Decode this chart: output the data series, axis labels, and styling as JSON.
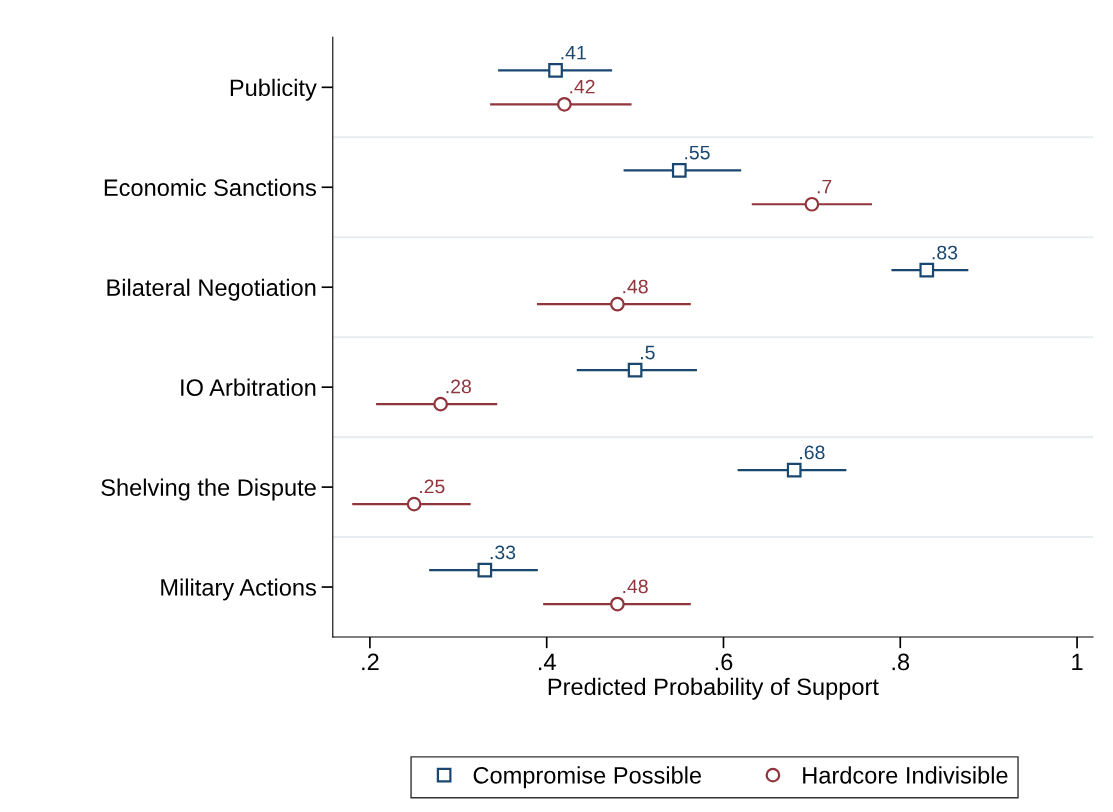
{
  "chart_data": {
    "type": "scatter",
    "orientation": "horizontal",
    "categories": [
      "Publicity",
      "Economic Sanctions",
      "Bilateral Negotiation",
      "IO Arbitration",
      "Shelving the Dispute",
      "Military Actions"
    ],
    "xlabel": "Predicted Probability of Support",
    "xlim": [
      0.158,
      1.018
    ],
    "xticks": [
      {
        "value": 0.2,
        "label": ".2"
      },
      {
        "value": 0.4,
        "label": ".4"
      },
      {
        "value": 0.6,
        "label": ".6"
      },
      {
        "value": 0.8,
        "label": ".8"
      },
      {
        "value": 1,
        "label": "1"
      }
    ],
    "series": [
      {
        "name": "Compromise Possible",
        "color": "#1a476f",
        "marker": "square",
        "values": [
          0.41,
          0.55,
          0.83,
          0.5,
          0.68,
          0.33
        ],
        "errors": [
          [
            0.345,
            0.474
          ],
          [
            0.487,
            0.62
          ],
          [
            0.79,
            0.877
          ],
          [
            0.434,
            0.57
          ],
          [
            0.616,
            0.739
          ],
          [
            0.267,
            0.39
          ]
        ],
        "value_labels": [
          ".41",
          ".55",
          ".83",
          ".5",
          ".68",
          ".33"
        ]
      },
      {
        "name": "Hardcore Indivisible",
        "color": "#90353b",
        "marker": "circle",
        "values": [
          0.42,
          0.7,
          0.48,
          0.28,
          0.25,
          0.48
        ],
        "errors": [
          [
            0.336,
            0.496
          ],
          [
            0.632,
            0.768
          ],
          [
            0.389,
            0.563
          ],
          [
            0.207,
            0.344
          ],
          [
            0.18,
            0.314
          ],
          [
            0.396,
            0.563
          ]
        ],
        "value_labels": [
          ".42",
          ".7",
          ".48",
          ".28",
          ".25",
          ".48"
        ]
      }
    ],
    "grid": "y",
    "legend": "bottom"
  }
}
